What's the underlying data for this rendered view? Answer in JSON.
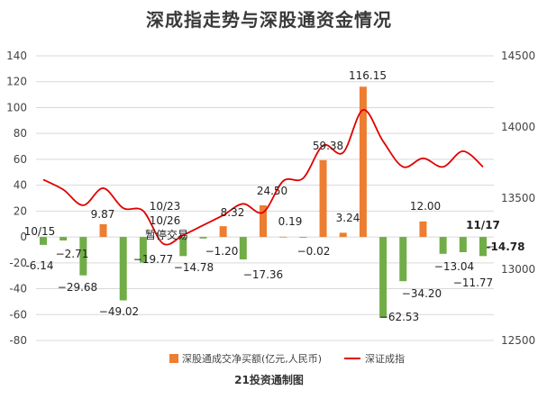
{
  "title": "深成指走势与深股通资金情况",
  "footer": "21投资通制图",
  "colors": {
    "positive_bar": "#ed7d31",
    "negative_bar": "#70ad47",
    "line": "#e00000",
    "gridline": "#d9d9d9"
  },
  "chart_data": {
    "type": "bar+line",
    "grid": true,
    "legend_position": "bottom",
    "left_axis": {
      "range": [
        -80,
        140
      ],
      "ticks": [
        "-80",
        "-60",
        "-40",
        "-20",
        "0",
        "20",
        "40",
        "60",
        "80",
        "100",
        "120",
        "140"
      ]
    },
    "right_axis": {
      "range": [
        12500,
        14500
      ],
      "ticks": [
        "12500",
        "13000",
        "13500",
        "14000",
        "14500"
      ]
    },
    "legend": {
      "bar": "深股通成交净买额(亿元,人民币)",
      "line": "深证成指"
    },
    "bars": [
      {
        "value": -6.14,
        "label": "-6.14"
      },
      {
        "value": -2.71,
        "label": "−2.71"
      },
      {
        "value": -29.68,
        "label": "−29.68"
      },
      {
        "value": 9.87,
        "label": "9.87"
      },
      {
        "value": -49.02,
        "label": "−49.02"
      },
      {
        "value": -19.77,
        "label": "−19.77"
      },
      {
        "value": 0,
        "label": ""
      },
      {
        "value": -14.78,
        "label": "−14.78"
      },
      {
        "value": -1.2,
        "label": "−1.20"
      },
      {
        "value": 8.32,
        "label": "8.32"
      },
      {
        "value": -17.36,
        "label": "−17.36"
      },
      {
        "value": 24.5,
        "label": "24.50"
      },
      {
        "value": 0.19,
        "label": "0.19"
      },
      {
        "value": -0.02,
        "label": "−0.02"
      },
      {
        "value": 59.38,
        "label": "59.38"
      },
      {
        "value": 3.24,
        "label": "3.24"
      },
      {
        "value": 116.15,
        "label": "116.15"
      },
      {
        "value": -62.53,
        "label": "−62.53"
      },
      {
        "value": -34.2,
        "label": "−34.20"
      },
      {
        "value": 12.0,
        "label": "12.00"
      },
      {
        "value": -13.04,
        "label": "−13.04"
      },
      {
        "value": -11.77,
        "label": "−11.77"
      },
      {
        "value": -14.78,
        "label": "-14.78"
      }
    ],
    "line_values": [
      13630,
      13560,
      13450,
      13570,
      13430,
      13410,
      13180,
      13240,
      13310,
      13380,
      13460,
      13400,
      13620,
      13640,
      13870,
      13820,
      14120,
      13900,
      13720,
      13780,
      13720,
      13830,
      13720
    ],
    "annotations": [
      {
        "text": "10/15",
        "bar_index": 0
      },
      {
        "text": "10/23",
        "bar_index": 6
      },
      {
        "text": "10/26",
        "bar_index": 6
      },
      {
        "text": "暂停交易",
        "bar_index": 6
      },
      {
        "text": "11/17",
        "bar_index": 22
      }
    ]
  }
}
